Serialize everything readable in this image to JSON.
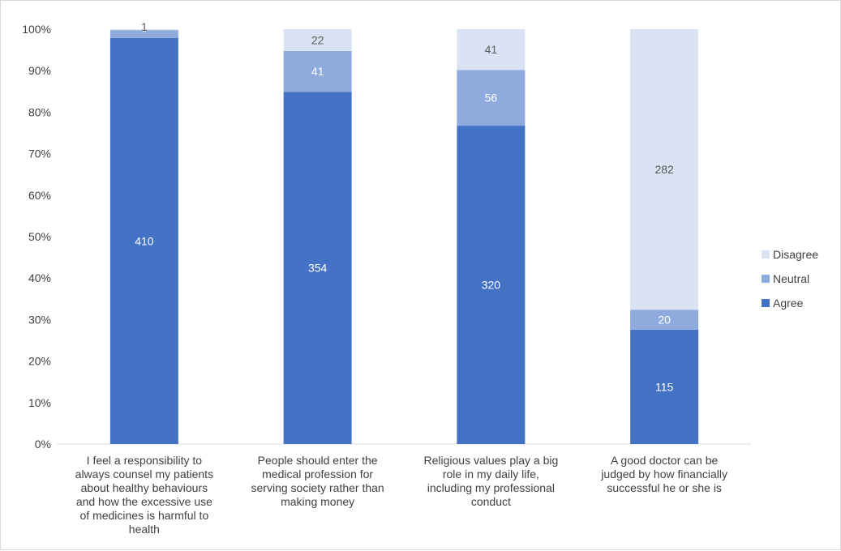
{
  "chart_data": {
    "type": "bar",
    "stacked": "percent",
    "categories": [
      "I feel a responsibility to always counsel my patients about healthy behaviours and how the excessive use of medicines is harmful to health",
      "People should enter the medical profession for serving society rather than making money",
      "Religious values play a big role in my daily life, including my professional conduct",
      "A good doctor can be judged by how financially successful he or she is"
    ],
    "category_lines": [
      [
        "I feel a responsibility to",
        "always counsel my patients",
        "about healthy behaviours",
        "and how the excessive use",
        "of medicines is harmful to",
        "health"
      ],
      [
        "People should enter the",
        "medical profession for",
        "serving society rather than",
        "making money"
      ],
      [
        "Religious values play a big",
        "role in my daily life,",
        "including my professional",
        "conduct"
      ],
      [
        "A good doctor can be",
        "judged by how financially",
        "successful he or she is"
      ]
    ],
    "series": [
      {
        "name": "Agree",
        "values": [
          410,
          354,
          320,
          115
        ],
        "color": "#4472C4",
        "label_color": "#ffffff"
      },
      {
        "name": "Neutral",
        "values": [
          8,
          41,
          56,
          20
        ],
        "color": "#8FAADC",
        "label_color": "#ffffff"
      },
      {
        "name": "Disagree",
        "values": [
          1,
          22,
          41,
          282
        ],
        "color": "#DAE3F3",
        "label_color": "#595959"
      }
    ],
    "y_ticks": [
      "0%",
      "10%",
      "20%",
      "30%",
      "40%",
      "50%",
      "60%",
      "70%",
      "80%",
      "90%",
      "100%"
    ],
    "ylim": [
      0,
      100
    ],
    "grid": false,
    "legend_position": "right",
    "legend_order": [
      "Disagree",
      "Neutral",
      "Agree"
    ],
    "title": "",
    "xlabel": "",
    "ylabel": ""
  }
}
